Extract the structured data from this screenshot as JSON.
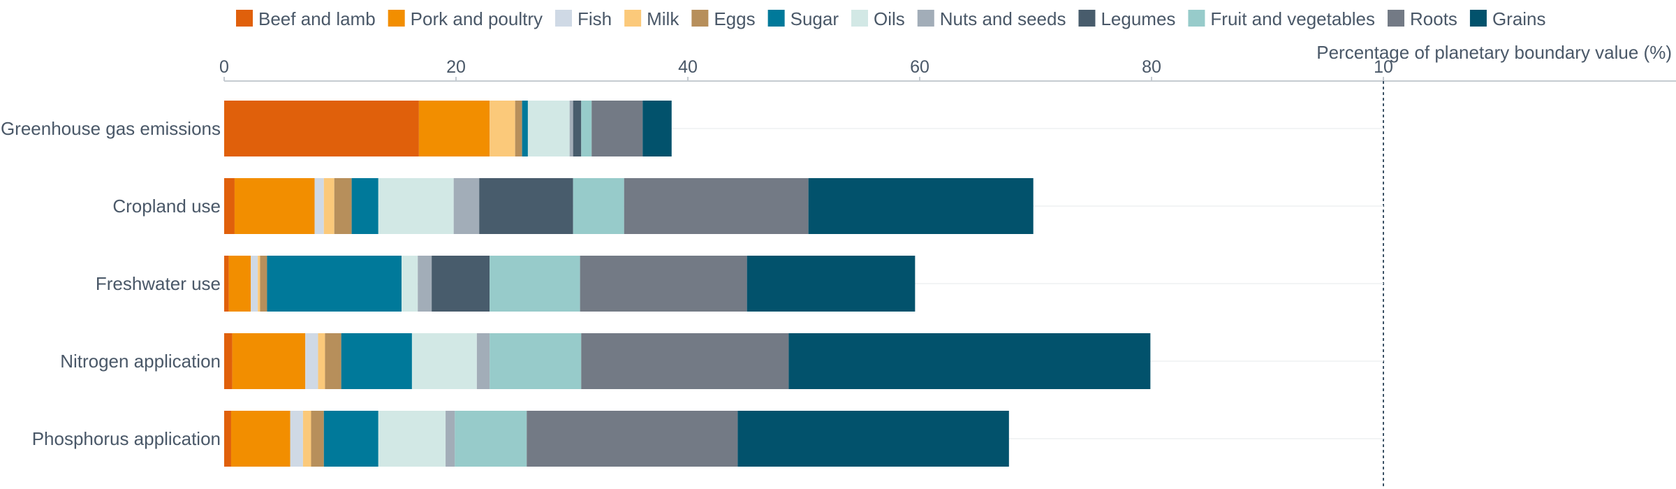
{
  "chart_data": {
    "type": "bar",
    "orientation": "horizontal",
    "stacked": true,
    "xlabel": "Percentage of planetary boundary value (%)",
    "xlim": [
      0,
      100
    ],
    "x_ticks": [
      "0",
      "20",
      "40",
      "60",
      "80",
      "10"
    ],
    "grid": false,
    "legend_position": "top",
    "categories": [
      "Greenhouse gas emissions",
      "Cropland use",
      "Freshwater use",
      "Nitrogen application",
      "Phosphorus application"
    ],
    "series": [
      {
        "name": "Beef and lamb",
        "color": "#e0600b",
        "values": [
          16.8,
          0.9,
          0.4,
          0.7,
          0.6
        ]
      },
      {
        "name": "Pork and poultry",
        "color": "#f28e00",
        "values": [
          6.1,
          6.9,
          1.9,
          6.3,
          5.1
        ]
      },
      {
        "name": "Fish",
        "color": "#cfd9e5",
        "values": [
          0.0,
          0.8,
          0.6,
          1.1,
          1.1
        ]
      },
      {
        "name": "Milk",
        "color": "#fbc97a",
        "values": [
          2.2,
          0.9,
          0.2,
          0.6,
          0.7
        ]
      },
      {
        "name": "Eggs",
        "color": "#b78f5b",
        "values": [
          0.6,
          1.5,
          0.6,
          1.4,
          1.1
        ]
      },
      {
        "name": "Sugar",
        "color": "#00799a",
        "values": [
          0.5,
          2.3,
          11.6,
          6.1,
          4.7
        ]
      },
      {
        "name": "Oils",
        "color": "#d2e8e5",
        "values": [
          3.6,
          6.5,
          1.4,
          5.6,
          5.8
        ]
      },
      {
        "name": "Nuts and seeds",
        "color": "#a2adb8",
        "values": [
          0.3,
          2.2,
          1.2,
          1.1,
          0.8
        ]
      },
      {
        "name": "Legumes",
        "color": "#485c6c",
        "values": [
          0.7,
          8.1,
          5.0,
          0.0,
          0.0
        ]
      },
      {
        "name": "Fruit and vegetables",
        "color": "#97cbca",
        "values": [
          0.9,
          4.4,
          7.8,
          7.9,
          6.2
        ]
      },
      {
        "name": "Roots",
        "color": "#737a85",
        "values": [
          4.4,
          15.9,
          14.4,
          17.9,
          18.2
        ]
      },
      {
        "name": "Grains",
        "color": "#02526c",
        "values": [
          2.5,
          19.4,
          14.5,
          31.2,
          23.4
        ]
      }
    ]
  }
}
